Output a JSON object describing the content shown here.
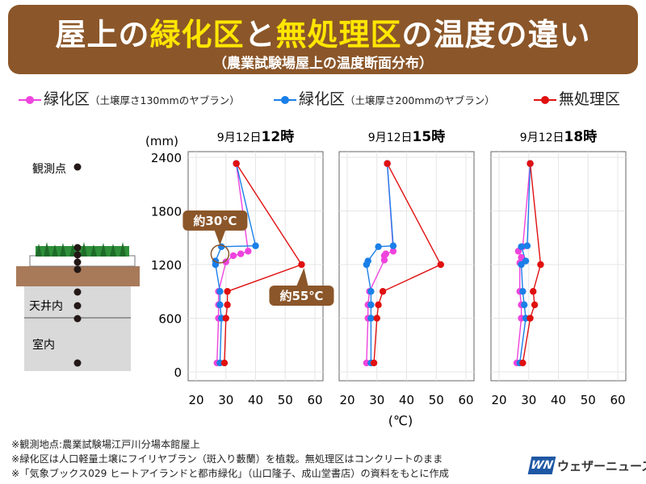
{
  "header": {
    "title_parts": [
      "屋上の",
      "緑化区",
      "と",
      "無処理区",
      "の温度の違い"
    ],
    "subtitle": "（農業試験場屋上の温度断面分布）"
  },
  "legend": [
    {
      "main": "緑化区",
      "sub": "（土壌厚さ130mmのヤブラン）",
      "color": "#ee44dd"
    },
    {
      "main": "緑化区",
      "sub": "（土壌厚さ200mmのヤブラン）",
      "color": "#1a7fe8"
    },
    {
      "main": "無処理区",
      "sub": "",
      "color": "#e01010"
    }
  ],
  "diagram": {
    "observation_point_label": "観測点",
    "ceiling_label": "天井内",
    "room_label": "室内"
  },
  "chart_data": [
    {
      "type": "line",
      "title": "9月12日12時",
      "title_prefix": "9月12日",
      "title_suffix": "12時",
      "ylabel": "(mm)",
      "xlabel": "(℃)",
      "xlim": [
        20,
        60
      ],
      "ylim": [
        0,
        2400
      ],
      "xticks": [
        20,
        30,
        40,
        50,
        60
      ],
      "yticks": [
        0,
        600,
        1200,
        1800,
        2400
      ],
      "annotations": [
        {
          "text": "約30℃",
          "x": 28,
          "y": 1400
        },
        {
          "text": "約55℃",
          "x": 55.5,
          "y": 1200
        }
      ],
      "series": [
        {
          "color": "#ee44dd",
          "points": [
            [
              33.5,
              2330
            ],
            [
              37.5,
              1350
            ],
            [
              35,
              1320
            ],
            [
              32.5,
              1300
            ],
            [
              30,
              1230
            ],
            [
              27.5,
              900
            ],
            [
              27.5,
              750
            ],
            [
              27.5,
              600
            ],
            [
              27,
              100
            ]
          ]
        },
        {
          "color": "#1a7fe8",
          "points": [
            [
              33.5,
              2330
            ],
            [
              40,
              1410
            ],
            [
              28.5,
              1400
            ],
            [
              26.5,
              1240
            ],
            [
              26.5,
              1200
            ],
            [
              28,
              900
            ],
            [
              28,
              750
            ],
            [
              28.5,
              600
            ],
            [
              28,
              100
            ]
          ]
        },
        {
          "color": "#e01010",
          "points": [
            [
              33.5,
              2330
            ],
            [
              55.5,
              1200
            ],
            [
              30.5,
              900
            ],
            [
              30.5,
              750
            ],
            [
              30,
              600
            ],
            [
              29.5,
              100
            ]
          ]
        }
      ]
    },
    {
      "type": "line",
      "title": "9月12日15時",
      "title_prefix": "9月12日",
      "title_suffix": "15時",
      "ylabel": "",
      "xlabel": "",
      "xlim": [
        20,
        60
      ],
      "ylim": [
        0,
        2400
      ],
      "xticks": [
        20,
        30,
        40,
        50,
        60
      ],
      "yticks": [
        0,
        600,
        1200,
        1800,
        2400
      ],
      "annotations": [],
      "series": [
        {
          "color": "#ee44dd",
          "points": [
            [
              33.5,
              2330
            ],
            [
              35.5,
              1350
            ],
            [
              33,
              1320
            ],
            [
              32.5,
              1300
            ],
            [
              32.5,
              1250
            ],
            [
              27.5,
              900
            ],
            [
              27,
              750
            ],
            [
              27,
              600
            ],
            [
              26.5,
              100
            ]
          ]
        },
        {
          "color": "#1a7fe8",
          "points": [
            [
              33.5,
              2330
            ],
            [
              35.5,
              1410
            ],
            [
              30.5,
              1400
            ],
            [
              27,
              1240
            ],
            [
              26.5,
              1200
            ],
            [
              28,
              900
            ],
            [
              28,
              750
            ],
            [
              28,
              600
            ],
            [
              28,
              100
            ]
          ]
        },
        {
          "color": "#e01010",
          "points": [
            [
              33.5,
              2330
            ],
            [
              51.5,
              1200
            ],
            [
              32,
              900
            ],
            [
              30.5,
              750
            ],
            [
              30,
              600
            ],
            [
              29,
              100
            ]
          ]
        }
      ]
    },
    {
      "type": "line",
      "title": "9月12日18時",
      "title_prefix": "9月12日",
      "title_suffix": "18時",
      "ylabel": "",
      "xlabel": "",
      "xlim": [
        20,
        60
      ],
      "ylim": [
        0,
        2400
      ],
      "xticks": [
        20,
        30,
        40,
        50,
        60
      ],
      "yticks": [
        0,
        600,
        1200,
        1800,
        2400
      ],
      "annotations": [],
      "series": [
        {
          "color": "#ee44dd",
          "points": [
            [
              30.5,
              2330
            ],
            [
              28,
              1400
            ],
            [
              26.5,
              1350
            ],
            [
              27.5,
              1280
            ],
            [
              27,
              1220
            ],
            [
              27,
              900
            ],
            [
              27.5,
              750
            ],
            [
              27.5,
              600
            ],
            [
              26,
              100
            ]
          ]
        },
        {
          "color": "#1a7fe8",
          "points": [
            [
              30.5,
              2330
            ],
            [
              29.5,
              1410
            ],
            [
              27.5,
              1400
            ],
            [
              29,
              1240
            ],
            [
              27.5,
              1200
            ],
            [
              28,
              900
            ],
            [
              28.5,
              750
            ],
            [
              29,
              600
            ],
            [
              27,
              100
            ]
          ]
        },
        {
          "color": "#e01010",
          "points": [
            [
              30.5,
              2330
            ],
            [
              34,
              1200
            ],
            [
              31.5,
              900
            ],
            [
              32,
              750
            ],
            [
              30.5,
              600
            ],
            [
              28,
              100
            ]
          ]
        }
      ]
    }
  ],
  "notes": [
    "※観測地点:農業試験場江戸川分場本館屋上",
    "※緑化区は人口軽量土壌にフイリヤブラン（斑入り藪蘭）を植栽。無処理区はコンクリートのまま",
    "※「気象ブックス029 ヒートアイランドと都市緑化」（山口隆子、成山堂書店）の資料をもとに作成"
  ],
  "logo": {
    "mark": "WN",
    "name": "ウェザーニュース",
    "color": "#1e57a4"
  }
}
